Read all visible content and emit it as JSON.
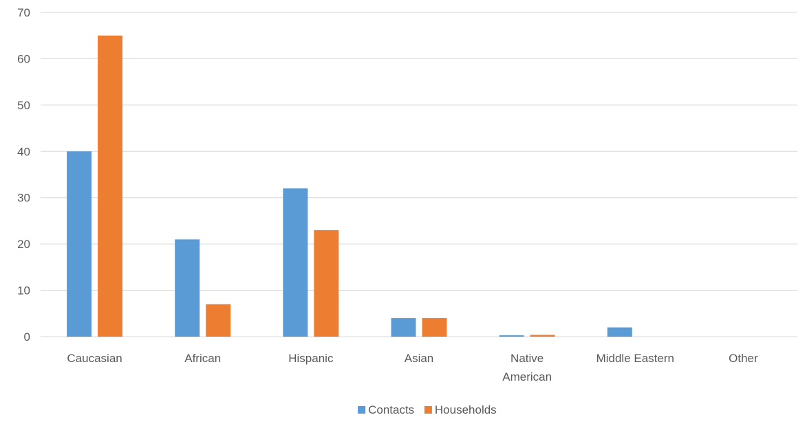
{
  "chart_data": {
    "type": "bar",
    "categories": [
      "Caucasian",
      "African",
      "Hispanic",
      "Asian",
      "Native American",
      "Middle Eastern",
      "Other"
    ],
    "category_lines": [
      [
        "Caucasian"
      ],
      [
        "African"
      ],
      [
        "Hispanic"
      ],
      [
        "Asian"
      ],
      [
        "Native",
        "American"
      ],
      [
        "Middle Eastern"
      ],
      [
        "Other"
      ]
    ],
    "series": [
      {
        "name": "Contacts",
        "color": "#5b9bd5",
        "values": [
          40,
          21,
          32,
          4,
          0.3,
          2,
          0
        ]
      },
      {
        "name": "Households",
        "color": "#ed7d31",
        "values": [
          65,
          7,
          23,
          4,
          0.4,
          0,
          0
        ]
      }
    ],
    "title": "",
    "xlabel": "",
    "ylabel": "",
    "ylim": [
      0,
      70
    ],
    "yticks": [
      0,
      10,
      20,
      30,
      40,
      50,
      60,
      70
    ],
    "grid": true,
    "legend_position": "bottom"
  }
}
